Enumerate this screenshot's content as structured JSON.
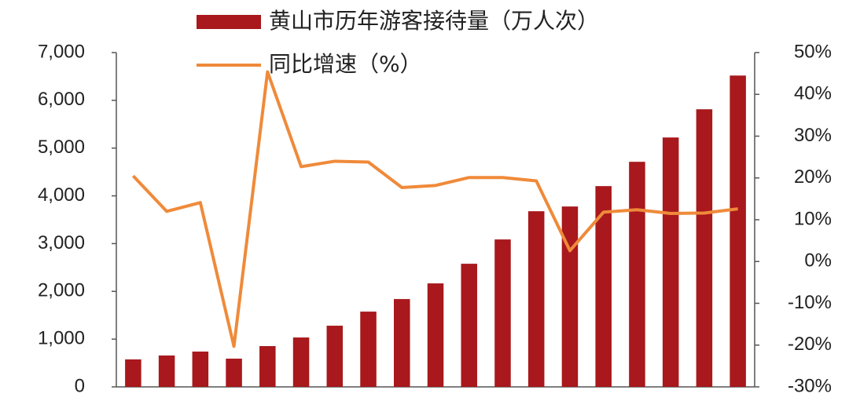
{
  "chart_data": {
    "type": "bar-line",
    "categories": [
      null,
      null,
      null,
      null,
      null,
      null,
      null,
      null,
      null,
      null,
      null,
      null,
      null,
      null,
      null,
      null,
      null,
      null,
      null
    ],
    "series": [
      {
        "name": "黄山市历年游客接待量（万人次）",
        "type": "bar",
        "color": "#a8181c",
        "values": [
          575,
          657,
          739,
          591,
          854,
          1034,
          1281,
          1576,
          1839,
          2167,
          2578,
          3087,
          3678,
          3777,
          4204,
          4713,
          5222,
          5813,
          6519
        ]
      },
      {
        "name": "同比增速（%）",
        "type": "line",
        "axis": "y2",
        "color": "#ef8a3a",
        "values": [
          20.5,
          12.0,
          14.1,
          -20.3,
          45.4,
          22.7,
          24.0,
          23.8,
          17.7,
          18.2,
          20.1,
          20.1,
          19.3,
          2.6,
          11.8,
          12.4,
          11.5,
          11.6,
          12.6
        ]
      }
    ],
    "ylim": [
      0,
      7000
    ],
    "yticks": [
      0,
      {
        "value": 1000,
        "label": "1,000"
      },
      {
        "value": 2000,
        "label": "2,000"
      },
      {
        "value": 3000,
        "label": "3,000"
      },
      {
        "value": 4000,
        "label": "4,000"
      },
      {
        "value": 5000,
        "label": "5,000"
      },
      {
        "value": 6000,
        "label": "6,000"
      },
      {
        "value": 7000,
        "label": "7,000"
      }
    ],
    "y2lim": [
      -30,
      50
    ],
    "y2ticks": [
      {
        "value": -30,
        "label": "-30%"
      },
      {
        "value": -20,
        "label": "-20%"
      },
      {
        "value": -10,
        "label": "-10%"
      },
      {
        "value": 0,
        "label": "0%"
      },
      {
        "value": 10,
        "label": "10%"
      },
      {
        "value": 20,
        "label": "20%"
      },
      {
        "value": 30,
        "label": "30%"
      },
      {
        "value": 40,
        "label": "40%"
      },
      {
        "value": 50,
        "label": "50%"
      }
    ],
    "legend": "top"
  }
}
